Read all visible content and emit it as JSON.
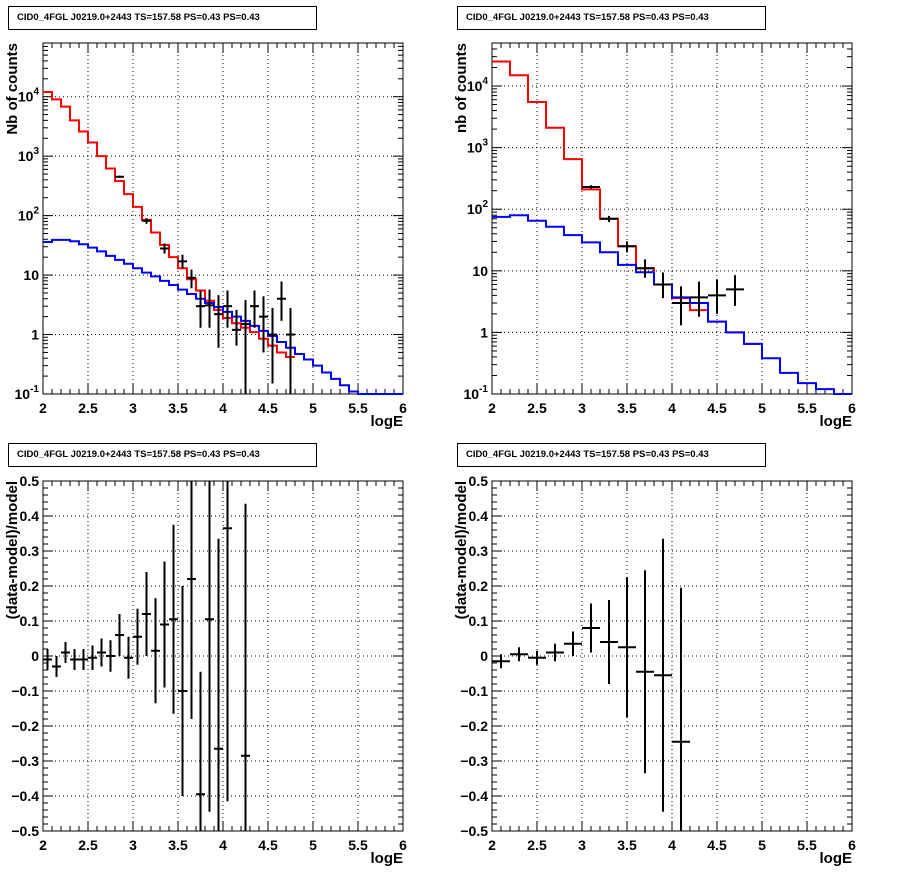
{
  "panels_title": "CID0_4FGL J0219.0+2443 TS=157.58 PS=0.43 PS=0.43",
  "colors": {
    "total_model": "#ff0000",
    "background_model": "#0000ff",
    "data": "#000000"
  },
  "chart_data": [
    {
      "id": "top-left",
      "type": "line",
      "title": "CID0_4FGL J0219.0+2443 TS=157.58 PS=0.43 PS=0.43",
      "xlabel": "logE",
      "ylabel": "Nb of counts",
      "xlim": [
        2,
        6
      ],
      "ylim": [
        0.1,
        80000
      ],
      "yscale": "log",
      "grid": true,
      "xticks": [
        "2",
        "2.5",
        "3",
        "3.5",
        "4",
        "4.5",
        "5",
        "5.5",
        "6"
      ],
      "yticks": [
        "10^-1",
        "1",
        "10",
        "10^2",
        "10^3",
        "10^4"
      ],
      "series": [
        {
          "kind": "step",
          "color": "red",
          "bin_width": 0.1,
          "x": [
            2.0,
            2.1,
            2.2,
            2.3,
            2.4,
            2.5,
            2.6,
            2.7,
            2.8,
            2.9,
            3.0,
            3.1,
            3.2,
            3.3,
            3.4,
            3.5,
            3.6,
            3.7,
            3.8,
            3.9,
            4.0,
            4.1,
            4.2,
            4.3,
            4.4,
            4.5,
            4.6,
            4.7
          ],
          "y": [
            12000,
            9000,
            6800,
            4000,
            2600,
            1700,
            1000,
            620,
            380,
            230,
            140,
            85,
            52,
            32,
            20,
            13,
            8.5,
            5.5,
            3.7,
            2.6,
            1.9,
            1.55,
            1.3,
            1.1,
            0.85,
            0.65,
            0.5,
            0.42
          ]
        },
        {
          "kind": "step",
          "color": "blue",
          "bin_width": 0.1,
          "x": [
            2.0,
            2.1,
            2.2,
            2.3,
            2.4,
            2.5,
            2.6,
            2.7,
            2.8,
            2.9,
            3.0,
            3.1,
            3.2,
            3.3,
            3.4,
            3.5,
            3.6,
            3.7,
            3.8,
            3.9,
            4.0,
            4.1,
            4.2,
            4.3,
            4.4,
            4.5,
            4.6,
            4.7,
            4.8,
            4.9,
            5.0,
            5.1,
            5.2,
            5.3,
            5.4,
            5.5,
            5.6,
            5.7,
            5.8,
            5.9
          ],
          "y": [
            36,
            39,
            39,
            37,
            33,
            29,
            25,
            21,
            18,
            15.5,
            13,
            11,
            9.5,
            8,
            6.8,
            5.7,
            4.8,
            4,
            3.4,
            2.9,
            2.4,
            2,
            1.7,
            1.4,
            1.15,
            0.95,
            0.75,
            0.6,
            0.47,
            0.38,
            0.3,
            0.23,
            0.18,
            0.14,
            0.11,
            0.1,
            0.1,
            0.1,
            0.1,
            0.1
          ]
        }
      ],
      "points": {
        "x": [
          2.85,
          3.15,
          3.35,
          3.55,
          3.65,
          3.75,
          3.85,
          3.95,
          4.05,
          4.15,
          4.25,
          4.35,
          4.45,
          4.55,
          4.65,
          4.75
        ],
        "y": [
          450,
          82,
          28,
          17,
          9,
          3,
          3.1,
          2.2,
          3,
          1.2,
          1.5,
          3,
          2,
          1,
          4,
          1
        ],
        "yerr_low": [
          20,
          9,
          5,
          4,
          3,
          1.7,
          1.8,
          1.6,
          1.7,
          0.55,
          1.45,
          1.7,
          1.5,
          0.85,
          2.3,
          0.9
        ],
        "yerr_high": [
          20,
          9,
          6,
          5,
          3.4,
          2.5,
          2.6,
          2.4,
          2.5,
          1.4,
          2.3,
          2.5,
          2.4,
          1.8,
          3.8,
          1.8
        ],
        "xerr": 0.05
      }
    },
    {
      "id": "top-right",
      "type": "line",
      "title": "CID0_4FGL J0219.0+2443 TS=157.58 PS=0.43 PS=0.43",
      "xlabel": "logE",
      "ylabel": "nb of counts",
      "xlim": [
        2,
        6
      ],
      "ylim": [
        0.1,
        50000
      ],
      "yscale": "log",
      "grid": true,
      "xticks": [
        "2",
        "2.5",
        "3",
        "3.5",
        "4",
        "4.5",
        "5",
        "5.5",
        "6"
      ],
      "yticks": [
        "10^-1",
        "1",
        "10",
        "10^2",
        "10^3",
        "10^4"
      ],
      "series": [
        {
          "kind": "step",
          "color": "red",
          "bin_width": 0.2,
          "x": [
            2.0,
            2.2,
            2.4,
            2.6,
            2.8,
            3.0,
            3.2,
            3.4,
            3.6,
            3.8,
            4.0,
            4.2,
            4.4,
            4.6,
            4.8
          ],
          "y": [
            25000,
            15000,
            5500,
            2100,
            650,
            210,
            70,
            25,
            11,
            6,
            3.6,
            2.3,
            1.5,
            1.0,
            0.65
          ]
        },
        {
          "kind": "step",
          "color": "blue",
          "bin_width": 0.2,
          "x": [
            2.0,
            2.2,
            2.4,
            2.6,
            2.8,
            3.0,
            3.2,
            3.4,
            3.6,
            3.8,
            4.0,
            4.2,
            4.4,
            4.6,
            4.8,
            5.0,
            5.2,
            5.4,
            5.6,
            5.8
          ],
          "y": [
            75,
            80,
            65,
            52,
            38,
            29,
            20,
            12.5,
            9.5,
            6,
            3.7,
            3,
            1.5,
            1,
            0.65,
            0.38,
            0.22,
            0.15,
            0.12,
            0.1
          ]
        }
      ],
      "points": {
        "x": [
          3.1,
          3.3,
          3.5,
          3.7,
          3.9,
          4.1,
          4.3,
          4.5,
          4.7
        ],
        "y": [
          230,
          70,
          25,
          11,
          6,
          3,
          3.7,
          4,
          5
        ],
        "yerr_low": [
          15,
          8,
          5,
          3.3,
          2.4,
          1.7,
          1.9,
          2,
          2.3
        ],
        "yerr_high": [
          15,
          8,
          5,
          4.3,
          3.4,
          2.6,
          3,
          3.2,
          3.5
        ],
        "xerr": 0.1
      }
    },
    {
      "id": "bottom-left",
      "type": "scatter",
      "title": "CID0_4FGL J0219.0+2443 TS=157.58 PS=0.43 PS=0.43",
      "xlabel": "logE",
      "ylabel": "(data-model)/model",
      "xlim": [
        2,
        6
      ],
      "ylim": [
        -0.5,
        0.5
      ],
      "grid": true,
      "xticks": [
        "2",
        "2.5",
        "3",
        "3.5",
        "4",
        "4.5",
        "5",
        "5.5",
        "6"
      ],
      "yticks": [
        "-0.5",
        "-0.4",
        "-0.3",
        "-0.2",
        "-0.1",
        "0",
        "0.1",
        "0.2",
        "0.3",
        "0.4",
        "0.5"
      ],
      "points": {
        "x": [
          2.05,
          2.15,
          2.25,
          2.35,
          2.45,
          2.55,
          2.65,
          2.75,
          2.85,
          2.95,
          3.05,
          3.15,
          3.25,
          3.35,
          3.45,
          3.55,
          3.65,
          3.75,
          3.85,
          3.95,
          4.05,
          4.25
        ],
        "y": [
          -0.01,
          -0.03,
          0.01,
          -0.01,
          -0.01,
          -0.005,
          0.01,
          0.0,
          0.06,
          -0.005,
          0.055,
          0.12,
          0.015,
          0.09,
          0.105,
          -0.1,
          0.22,
          -0.395,
          0.105,
          -0.265,
          0.365,
          -0.285
        ],
        "yerr": [
          0.03,
          0.03,
          0.03,
          0.03,
          0.03,
          0.035,
          0.04,
          0.045,
          0.06,
          0.06,
          0.08,
          0.12,
          0.15,
          0.18,
          0.27,
          0.3,
          0.4,
          0.35,
          0.55,
          0.6,
          0.78,
          0.72
        ],
        "xerr": 0.05
      }
    },
    {
      "id": "bottom-right",
      "type": "scatter",
      "title": "CID0_4FGL J0219.0+2443 TS=157.58 PS=0.43 PS=0.43",
      "xlabel": "logE",
      "ylabel": "(data-model)/model",
      "xlim": [
        2,
        6
      ],
      "ylim": [
        -0.5,
        0.5
      ],
      "grid": true,
      "xticks": [
        "2",
        "2.5",
        "3",
        "3.5",
        "4",
        "4.5",
        "5",
        "5.5",
        "6"
      ],
      "yticks": [
        "-0.5",
        "-0.4",
        "-0.3",
        "-0.2",
        "-0.1",
        "0",
        "0.1",
        "0.2",
        "0.3",
        "0.4",
        "0.5"
      ],
      "points": {
        "x": [
          2.1,
          2.3,
          2.5,
          2.7,
          2.9,
          3.1,
          3.3,
          3.5,
          3.7,
          3.9,
          4.1
        ],
        "y": [
          -0.015,
          0.005,
          -0.005,
          0.01,
          0.035,
          0.08,
          0.04,
          0.025,
          -0.045,
          -0.055,
          -0.245
        ],
        "yerr": [
          0.02,
          0.02,
          0.02,
          0.025,
          0.035,
          0.07,
          0.12,
          0.2,
          0.29,
          0.39,
          0.44
        ],
        "xerr": 0.1
      }
    }
  ]
}
